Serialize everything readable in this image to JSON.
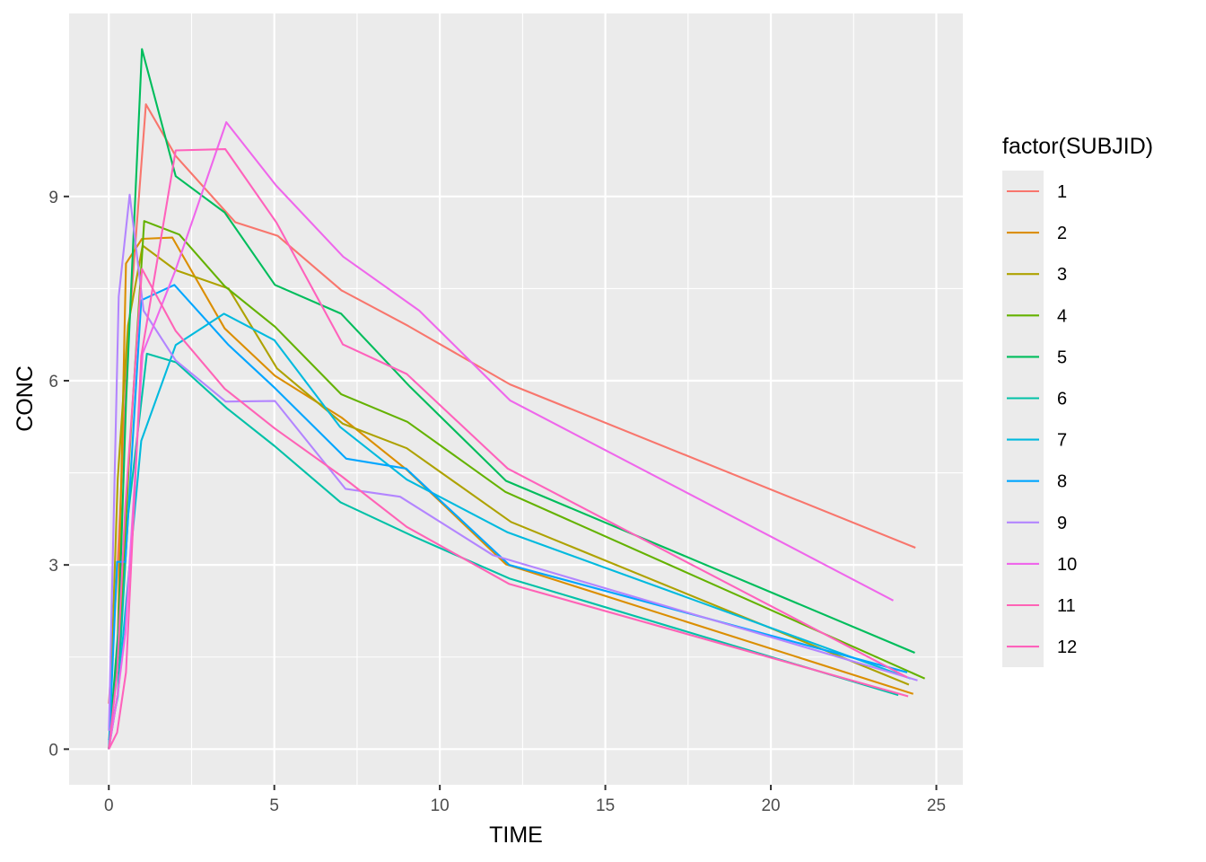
{
  "chart_data": {
    "type": "line",
    "title": "",
    "xlabel": "TIME",
    "ylabel": "CONC",
    "xlim": [
      -1.2,
      25.8
    ],
    "ylim": [
      -0.58,
      11.98
    ],
    "x_ticks": [
      0,
      5,
      10,
      15,
      20,
      25
    ],
    "y_ticks": [
      0,
      3,
      6,
      9
    ],
    "grid": true,
    "legend": {
      "title": "factor(SUBJID)",
      "position": "right"
    },
    "series": [
      {
        "name": "1",
        "color": "#F8766D",
        "x": [
          0,
          0.25,
          0.57,
          1.12,
          2.02,
          3.82,
          5.1,
          7.03,
          9.05,
          12.12,
          24.37
        ],
        "y": [
          0.74,
          2.84,
          6.57,
          10.5,
          9.66,
          8.58,
          8.36,
          7.47,
          6.89,
          5.94,
          3.28
        ]
      },
      {
        "name": "2",
        "color": "#DB8E00",
        "x": [
          0,
          0.27,
          0.52,
          1.0,
          1.92,
          3.5,
          5.02,
          7.03,
          9.0,
          12.0,
          24.3
        ],
        "y": [
          0,
          1.72,
          7.91,
          8.31,
          8.33,
          6.85,
          6.08,
          5.4,
          4.55,
          3.01,
          0.9
        ]
      },
      {
        "name": "3",
        "color": "#AEA200",
        "x": [
          0,
          0.27,
          0.58,
          1.02,
          2.02,
          3.62,
          5.08,
          7.07,
          9.0,
          12.15,
          24.17
        ],
        "y": [
          0,
          4.4,
          6.9,
          8.2,
          7.8,
          7.5,
          6.2,
          5.3,
          4.9,
          3.7,
          1.05
        ]
      },
      {
        "name": "4",
        "color": "#64B200",
        "x": [
          0,
          0.35,
          0.6,
          1.07,
          2.13,
          3.5,
          5.02,
          7.02,
          9.02,
          11.98,
          24.65
        ],
        "y": [
          0,
          1.89,
          4.6,
          8.6,
          8.38,
          7.54,
          6.88,
          5.78,
          5.33,
          4.19,
          1.15
        ]
      },
      {
        "name": "5",
        "color": "#00BD5C",
        "x": [
          0,
          0.3,
          0.52,
          1.0,
          2.02,
          3.5,
          5.02,
          7.02,
          9.1,
          12.0,
          24.35
        ],
        "y": [
          0,
          2.02,
          5.63,
          11.4,
          9.33,
          8.74,
          7.56,
          7.09,
          5.9,
          4.37,
          1.57
        ]
      },
      {
        "name": "6",
        "color": "#00C1A7",
        "x": [
          0,
          0.27,
          0.58,
          1.15,
          2.03,
          3.57,
          5.0,
          7.0,
          9.22,
          12.1,
          23.85
        ],
        "y": [
          0,
          0.9,
          3.8,
          6.44,
          6.3,
          5.55,
          4.94,
          4.02,
          3.46,
          2.78,
          0.88
        ]
      },
      {
        "name": "7",
        "color": "#00BADE",
        "x": [
          0,
          0.27,
          0.52,
          0.98,
          2.02,
          3.48,
          5.0,
          6.98,
          9.0,
          12.05,
          24.22
        ],
        "y": [
          0.15,
          0.85,
          2.35,
          5.02,
          6.58,
          7.09,
          6.66,
          5.25,
          4.39,
          3.53,
          1.15
        ]
      },
      {
        "name": "8",
        "color": "#00A6FF",
        "x": [
          0,
          0.25,
          0.5,
          0.98,
          1.98,
          3.6,
          5.02,
          7.17,
          8.98,
          12.1,
          24.12
        ],
        "y": [
          0,
          3.05,
          3.05,
          7.31,
          7.56,
          6.59,
          5.88,
          4.73,
          4.57,
          3.0,
          1.25
        ]
      },
      {
        "name": "9",
        "color": "#B385FF",
        "x": [
          0,
          0.3,
          0.63,
          1.05,
          2.02,
          3.53,
          5.02,
          7.15,
          8.8,
          11.6,
          24.43
        ],
        "y": [
          0.3,
          7.37,
          9.03,
          7.14,
          6.33,
          5.66,
          5.67,
          4.24,
          4.11,
          3.16,
          1.12
        ]
      },
      {
        "name": "10",
        "color": "#EF67EB",
        "x": [
          0,
          0.27,
          0.5,
          1.02,
          2.02,
          3.55,
          5.05,
          7.08,
          9.38,
          12.12,
          23.7
        ],
        "y": [
          0,
          0.9,
          1.89,
          6.44,
          7.81,
          10.21,
          9.18,
          8.02,
          7.14,
          5.68,
          2.42
        ]
      },
      {
        "name": "11",
        "color": "#FF63B6",
        "x": [
          0,
          0.25,
          0.5,
          1.0,
          2.02,
          3.5,
          5.02,
          7.02,
          9.0,
          12.1,
          24.15
        ],
        "y": [
          0,
          1.25,
          3.96,
          7.82,
          6.81,
          5.87,
          5.22,
          4.45,
          3.62,
          2.69,
          0.86
        ]
      },
      {
        "name": "12",
        "color": "#FF62BC",
        "x": [
          0,
          0.25,
          0.52,
          0.98,
          2.02,
          3.52,
          5.07,
          7.07,
          9.0,
          12.05,
          24.12
        ],
        "y": [
          0,
          0.27,
          1.25,
          6.4,
          9.75,
          9.77,
          8.57,
          6.59,
          6.11,
          4.57,
          1.17
        ]
      }
    ]
  }
}
